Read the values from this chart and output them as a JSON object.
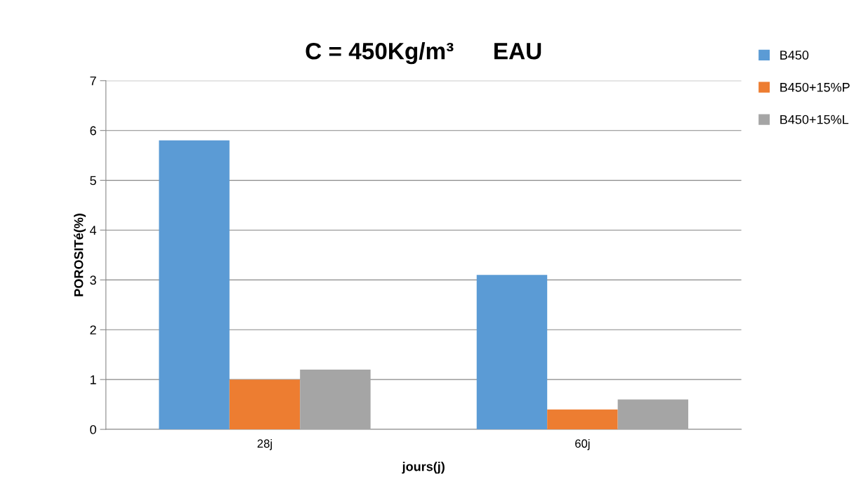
{
  "chart_data": {
    "type": "bar",
    "title": "C = 450Kg/m³      EAU",
    "xlabel": "jours(j)",
    "ylabel": "POROSITé(%)",
    "categories": [
      "28j",
      "60j"
    ],
    "series": [
      {
        "name": "B450",
        "color": "#5b9bd5",
        "values": [
          5.8,
          3.1
        ]
      },
      {
        "name": "B450+15%P",
        "color": "#ed7d31",
        "values": [
          1.0,
          0.4
        ]
      },
      {
        "name": "B450+15%L",
        "color": "#a5a5a5",
        "values": [
          1.2,
          0.6
        ]
      }
    ],
    "ylim": [
      0,
      7
    ],
    "yticks": [
      0,
      1,
      2,
      3,
      4,
      5,
      6,
      7
    ],
    "grid": "y",
    "legend": "top right"
  }
}
